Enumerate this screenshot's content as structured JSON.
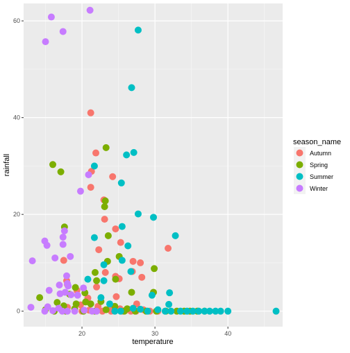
{
  "chart_data": {
    "type": "scatter",
    "xlabel": "temperature",
    "ylabel": "rainfall",
    "x_ticks": [
      20,
      30,
      40
    ],
    "y_ticks": [
      0,
      20,
      40,
      60
    ],
    "xlim": [
      12.0,
      47.5
    ],
    "ylim": [
      -3.2,
      63.6
    ],
    "grid": true,
    "legend_title": "season_name",
    "legend_position": "right",
    "series": [
      {
        "name": "Autumn",
        "color": "#F8766D",
        "points": [
          [
            21.2,
            41.0
          ],
          [
            21.9,
            32.7
          ],
          [
            23.0,
            23.0
          ],
          [
            21.3,
            28.9
          ],
          [
            21.2,
            25.6
          ],
          [
            24.2,
            27.8
          ],
          [
            23.1,
            19.0
          ],
          [
            24.6,
            17.0
          ],
          [
            25.3,
            14.2
          ],
          [
            27.0,
            10.3
          ],
          [
            28.0,
            10.0
          ],
          [
            31.8,
            13.0
          ],
          [
            17.5,
            10.5
          ],
          [
            22.3,
            12.7
          ],
          [
            23.2,
            8.0
          ],
          [
            24.6,
            7.2
          ],
          [
            26.9,
            8.2
          ],
          [
            28.2,
            7.0
          ],
          [
            25.1,
            6.7
          ],
          [
            22.0,
            5.0
          ],
          [
            18.0,
            5.5
          ],
          [
            19.3,
            4.3
          ],
          [
            17.9,
            6.3
          ],
          [
            24.7,
            3.0
          ],
          [
            20.8,
            2.7
          ],
          [
            19.8,
            1.3
          ],
          [
            27.5,
            1.5
          ],
          [
            18.0,
            0.8
          ],
          [
            22.2,
            1.0
          ],
          [
            23.7,
            0.4
          ],
          [
            25.2,
            0.5
          ],
          [
            26.0,
            0.2
          ],
          [
            27.4,
            0.0
          ],
          [
            28.4,
            0.3
          ],
          [
            29.3,
            0.0
          ],
          [
            20.0,
            0.0
          ],
          [
            21.0,
            0.2
          ],
          [
            22.8,
            0.0
          ],
          [
            24.0,
            0.0
          ],
          [
            25.6,
            0.0
          ],
          [
            26.7,
            0.0
          ],
          [
            30.4,
            0.0
          ]
        ]
      },
      {
        "name": "Spring",
        "color": "#7CAE00",
        "points": [
          [
            16.0,
            30.3
          ],
          [
            17.1,
            28.8
          ],
          [
            23.3,
            33.8
          ],
          [
            23.1,
            21.6
          ],
          [
            23.2,
            22.8
          ],
          [
            17.6,
            17.4
          ],
          [
            23.6,
            15.6
          ],
          [
            25.1,
            11.3
          ],
          [
            23.5,
            10.3
          ],
          [
            21.8,
            8.0
          ],
          [
            22.0,
            6.3
          ],
          [
            24.6,
            6.6
          ],
          [
            29.9,
            8.8
          ],
          [
            19.1,
            4.9
          ],
          [
            20.4,
            3.8
          ],
          [
            26.8,
            3.9
          ],
          [
            29.8,
            3.9
          ],
          [
            18.3,
            3.5
          ],
          [
            14.2,
            2.8
          ],
          [
            16.6,
            1.8
          ],
          [
            17.5,
            1.1
          ],
          [
            19.2,
            1.5
          ],
          [
            20.5,
            1.9
          ],
          [
            21.2,
            1.5
          ],
          [
            22.6,
            2.0
          ],
          [
            24.5,
            1.0
          ],
          [
            26.2,
            0.5
          ],
          [
            15.0,
            0.3
          ],
          [
            16.2,
            0.0
          ],
          [
            17.8,
            0.0
          ],
          [
            19.0,
            0.5
          ],
          [
            20.2,
            0.0
          ],
          [
            21.8,
            0.0
          ],
          [
            23.3,
            0.3
          ],
          [
            25.8,
            0.0
          ],
          [
            27.3,
            0.0
          ],
          [
            28.8,
            0.0
          ],
          [
            30.2,
            0.0
          ],
          [
            31.5,
            0.0
          ],
          [
            33.0,
            0.0
          ],
          [
            34.0,
            0.0
          ],
          [
            34.8,
            0.0
          ],
          [
            35.8,
            0.0
          ],
          [
            36.8,
            0.0
          ]
        ]
      },
      {
        "name": "Summer",
        "color": "#00BFC4",
        "points": [
          [
            27.7,
            58.1
          ],
          [
            26.8,
            46.2
          ],
          [
            26.1,
            32.3
          ],
          [
            27.1,
            32.8
          ],
          [
            21.7,
            30.0
          ],
          [
            25.4,
            26.5
          ],
          [
            27.7,
            20.1
          ],
          [
            29.8,
            19.4
          ],
          [
            25.5,
            17.5
          ],
          [
            32.8,
            15.6
          ],
          [
            21.7,
            15.2
          ],
          [
            26.3,
            13.5
          ],
          [
            25.5,
            10.5
          ],
          [
            23.0,
            9.6
          ],
          [
            26.7,
            8.2
          ],
          [
            20.8,
            6.6
          ],
          [
            23.0,
            6.3
          ],
          [
            29.6,
            3.3
          ],
          [
            32.0,
            3.8
          ],
          [
            22.6,
            2.8
          ],
          [
            23.8,
            1.5
          ],
          [
            31.9,
            1.4
          ],
          [
            27.0,
            0.6
          ],
          [
            28.0,
            0.4
          ],
          [
            29.0,
            0.0
          ],
          [
            30.4,
            0.3
          ],
          [
            31.4,
            0.0
          ],
          [
            32.2,
            0.0
          ],
          [
            33.5,
            0.0
          ],
          [
            34.4,
            0.0
          ],
          [
            35.2,
            0.0
          ],
          [
            36.0,
            0.0
          ],
          [
            36.8,
            0.0
          ],
          [
            37.5,
            0.0
          ],
          [
            38.3,
            0.0
          ],
          [
            39.0,
            0.0
          ],
          [
            40.0,
            0.0
          ],
          [
            46.6,
            0.0
          ],
          [
            24.5,
            0.0
          ],
          [
            25.3,
            0.0
          ]
        ]
      },
      {
        "name": "Winter",
        "color": "#C77CFF",
        "points": [
          [
            21.1,
            62.2
          ],
          [
            15.8,
            60.8
          ],
          [
            17.4,
            57.8
          ],
          [
            15.0,
            55.7
          ],
          [
            19.8,
            24.8
          ],
          [
            20.9,
            28.2
          ],
          [
            14.9,
            14.5
          ],
          [
            15.2,
            13.6
          ],
          [
            17.4,
            15.3
          ],
          [
            17.6,
            16.6
          ],
          [
            17.4,
            13.8
          ],
          [
            18.4,
            11.3
          ],
          [
            13.2,
            10.4
          ],
          [
            16.3,
            11.0
          ],
          [
            17.9,
            7.3
          ],
          [
            16.9,
            5.4
          ],
          [
            18.0,
            5.7
          ],
          [
            18.1,
            5.2
          ],
          [
            15.5,
            4.3
          ],
          [
            17.0,
            3.6
          ],
          [
            17.7,
            3.9
          ],
          [
            18.5,
            3.4
          ],
          [
            19.4,
            3.3
          ],
          [
            20.2,
            4.8
          ],
          [
            13.0,
            0.8
          ],
          [
            14.9,
            0.0
          ],
          [
            15.3,
            0.9
          ],
          [
            16.0,
            0.1
          ],
          [
            16.8,
            0.6
          ],
          [
            17.3,
            0.0
          ],
          [
            18.0,
            0.0
          ],
          [
            19.0,
            0.0
          ],
          [
            20.3,
            0.2
          ],
          [
            21.4,
            0.0
          ],
          [
            22.0,
            0.0
          ]
        ]
      }
    ]
  }
}
